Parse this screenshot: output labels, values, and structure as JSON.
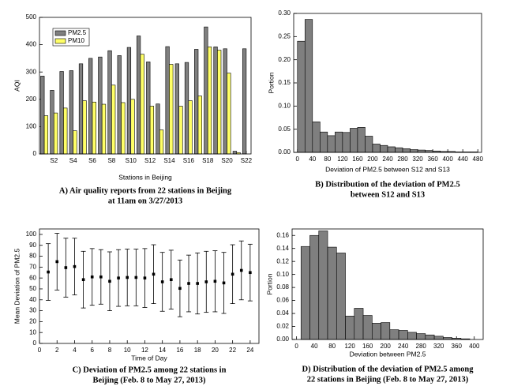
{
  "chart_data": [
    {
      "type": "bar",
      "categories": [
        null,
        "S2",
        null,
        "S4",
        null,
        "S6",
        null,
        "S8",
        null,
        "S10",
        null,
        "S12",
        null,
        "S14",
        null,
        "S16",
        null,
        "S18",
        null,
        "S20",
        null,
        "S22"
      ],
      "series": [
        {
          "name": "PM2.5",
          "color": "#7f7f7f",
          "values": [
            285,
            233,
            302,
            305,
            330,
            350,
            355,
            378,
            360,
            390,
            432,
            337,
            183,
            393,
            330,
            335,
            383,
            465,
            392,
            385,
            10,
            385
          ]
        },
        {
          "name": "PM10",
          "color": "#ffff66",
          "values": [
            140,
            150,
            168,
            85,
            195,
            190,
            182,
            252,
            188,
            200,
            365,
            175,
            88,
            328,
            175,
            195,
            212,
            392,
            380,
            296,
            5,
            null
          ]
        }
      ],
      "ylim": [
        0,
        500
      ],
      "yticks": [
        0,
        100,
        200,
        300,
        400,
        500
      ],
      "ylabel": "AQI",
      "xlabel": "Stations in Beijing",
      "legend": "upper left",
      "grid": false,
      "caption": [
        "A) Air quality reports from 22 stations in Beijing",
        "at 11am on 3/27/2013"
      ]
    },
    {
      "type": "histogram",
      "bins": [
        0,
        20,
        40,
        60,
        80,
        100,
        120,
        140,
        160,
        180,
        200,
        220,
        240,
        260,
        280,
        300,
        320,
        340,
        360,
        380,
        400,
        420,
        440,
        460,
        480
      ],
      "values": [
        0.24,
        0.287,
        0.066,
        0.044,
        0.036,
        0.044,
        0.043,
        0.052,
        0.054,
        0.035,
        0.018,
        0.015,
        0.012,
        0.01,
        0.008,
        0.006,
        0.005,
        0.004,
        0.003,
        0.002,
        0.002,
        0.001,
        0.001,
        0.001
      ],
      "color": "#7f7f7f",
      "xlim": [
        -10,
        490
      ],
      "xticks": [
        0,
        40,
        80,
        120,
        160,
        200,
        240,
        280,
        320,
        360,
        400,
        440,
        480
      ],
      "ylim": [
        0,
        0.3
      ],
      "yticks": [
        {
          "value": 0,
          "label": "0.00"
        },
        0.05,
        {
          "value": 0.1,
          "label": "0.10"
        },
        0.15,
        {
          "value": 0.2,
          "label": "0.20"
        },
        0.25,
        {
          "value": 0.3,
          "label": "0.30"
        }
      ],
      "ylabel": "Portion",
      "xlabel": "Deviation of PM2.5 between S12 and S13",
      "grid": false,
      "caption": [
        "B) Distribution of the deviation of PM2.5",
        "between S12 and S13"
      ]
    },
    {
      "type": "errorbar",
      "x": [
        1,
        2,
        3,
        4,
        5,
        6,
        7,
        8,
        9,
        10,
        11,
        12,
        13,
        14,
        15,
        16,
        17,
        18,
        19,
        20,
        21,
        22,
        23,
        24
      ],
      "values": [
        65.5,
        75,
        69.5,
        70.5,
        58.5,
        61,
        61,
        57,
        60,
        60.5,
        60.5,
        60,
        63.5,
        56.5,
        58.5,
        50.5,
        55,
        55,
        56.5,
        57,
        55.5,
        63.5,
        67,
        65
      ],
      "errors": [
        26,
        26,
        27,
        26,
        26,
        26,
        25,
        27,
        26,
        26,
        26,
        27,
        27,
        27,
        27,
        26,
        26,
        28,
        28,
        28,
        28,
        27,
        27,
        26
      ],
      "color": "#000000",
      "xlim": [
        0,
        25
      ],
      "xticks": [
        0,
        2,
        4,
        6,
        8,
        10,
        12,
        14,
        16,
        18,
        20,
        22,
        24
      ],
      "ylim": [
        0,
        105
      ],
      "yticks": [
        0,
        10,
        20,
        30,
        40,
        50,
        60,
        70,
        80,
        90,
        100
      ],
      "ylabel": "Mean Deviation of PM2.5",
      "xlabel": "Time of Day",
      "grid": false,
      "caption": [
        "C) Deviation of PM2.5 among 22 stations in",
        "Beijing (Feb. 8 to May 27, 2013)"
      ]
    },
    {
      "type": "histogram",
      "bins": [
        10,
        30,
        50,
        70,
        90,
        110,
        130,
        150,
        170,
        190,
        210,
        230,
        250,
        270,
        290,
        310,
        330,
        350,
        370,
        390
      ],
      "values": [
        0.143,
        0.16,
        0.167,
        0.142,
        0.133,
        0.036,
        0.048,
        0.037,
        0.025,
        0.026,
        0.015,
        0.014,
        0.011,
        0.009,
        0.007,
        0.005,
        0.003,
        0.002,
        0.001
      ],
      "color": "#7f7f7f",
      "xlim": [
        -10,
        420
      ],
      "xticks": [
        0,
        40,
        80,
        120,
        160,
        200,
        240,
        280,
        320,
        360,
        400
      ],
      "ylim": [
        0,
        0.17
      ],
      "yticks": [
        {
          "value": 0,
          "label": "0.00"
        },
        0.02,
        0.04,
        0.06,
        0.08,
        {
          "value": 0.1,
          "label": "0.10"
        },
        0.12,
        0.14,
        0.16
      ],
      "ylabel": "Portion",
      "xlabel": "Deviation between PM2.5",
      "grid": false,
      "caption": [
        "D) Distribution of the deviation of PM2.5 among",
        "22 stations in Beijing (Feb. 8 to May 27, 2013)"
      ]
    }
  ]
}
